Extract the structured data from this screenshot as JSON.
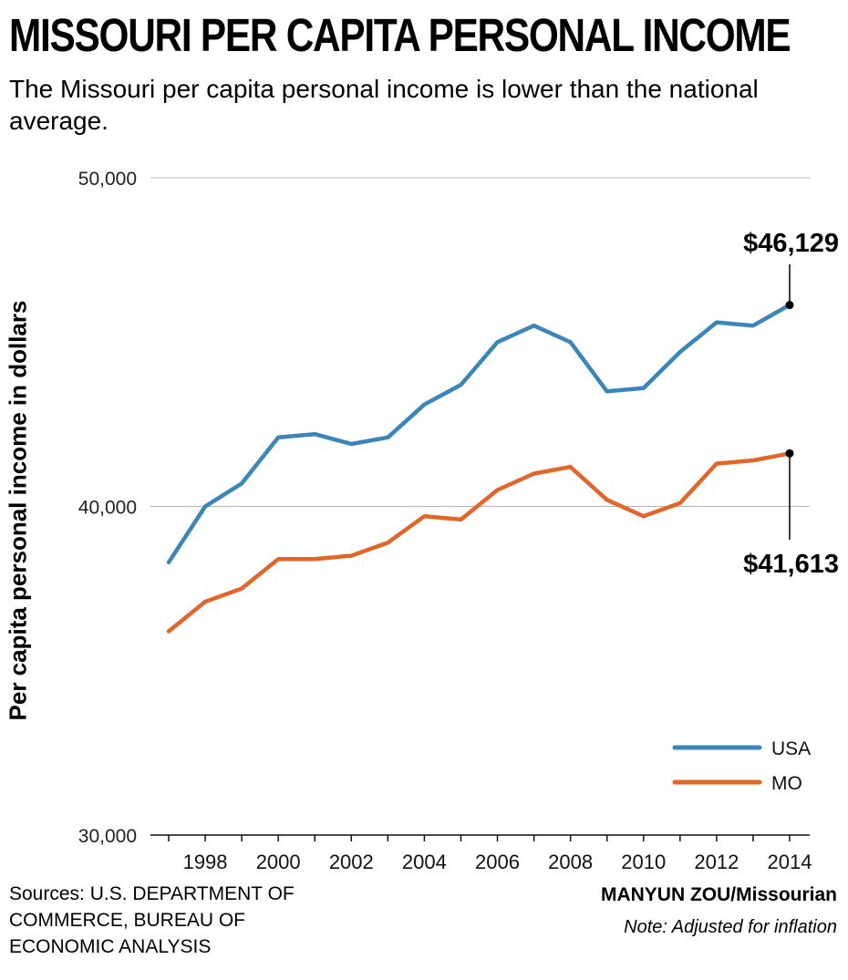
{
  "header": {
    "title": "MISSOURI PER CAPITA PERSONAL INCOME",
    "subtitle": "The Missouri per capita personal income is lower than the national average."
  },
  "footer": {
    "sources": "Sources: U.S. DEPARTMENT OF\nCOMMERCE, BUREAU OF\nECONOMIC ANALYSIS",
    "credit_name": "MANYUN ZOU",
    "credit_outlet": "/Missourian",
    "note": "Note: Adjusted for inflation"
  },
  "chart_data": {
    "type": "line",
    "title": "MISSOURI PER CAPITA PERSONAL INCOME",
    "subtitle": "The Missouri per capita personal income is lower than the national average.",
    "xlabel": "",
    "ylabel": "Per capita personal income in dollars",
    "x": [
      1997,
      1998,
      1999,
      2000,
      2001,
      2002,
      2003,
      2004,
      2005,
      2006,
      2007,
      2008,
      2009,
      2010,
      2011,
      2012,
      2013,
      2014
    ],
    "x_tick_labels": [
      "1998",
      "2000",
      "2002",
      "2004",
      "2006",
      "2008",
      "2010",
      "2012",
      "2014"
    ],
    "y_tick_labels": [
      "50,000",
      "40,000",
      "30,000"
    ],
    "ylim": [
      30000,
      50000
    ],
    "xlim": [
      1997,
      2014
    ],
    "grid": "horizontal at 40,000 and 50,000",
    "legend_position": "bottom-right",
    "series": [
      {
        "name": "USA",
        "color": "#3a86b8",
        "values": [
          38300,
          40000,
          40700,
          42100,
          42200,
          41900,
          42100,
          43100,
          43700,
          45000,
          45500,
          45000,
          43500,
          43600,
          44700,
          45600,
          45500,
          46129
        ]
      },
      {
        "name": "MO",
        "color": "#e0662a",
        "values": [
          36200,
          37100,
          37500,
          38400,
          38400,
          38500,
          38900,
          39700,
          39600,
          40500,
          41000,
          41200,
          40200,
          39700,
          40100,
          41300,
          41400,
          41613
        ]
      }
    ],
    "annotations": [
      {
        "text": "$46,129",
        "series": "USA",
        "x": 2014,
        "y": 46129
      },
      {
        "text": "$41,613",
        "series": "MO",
        "x": 2014,
        "y": 41613
      }
    ]
  }
}
